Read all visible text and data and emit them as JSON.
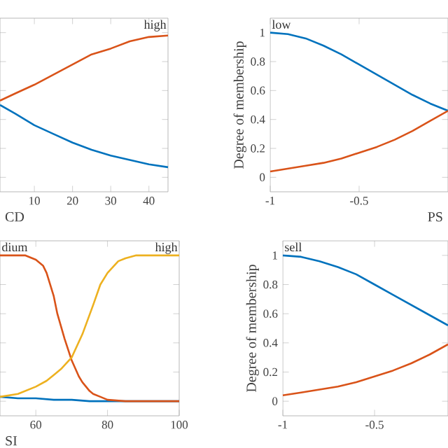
{
  "chart_data": [
    {
      "type": "line",
      "xlabel": "CD",
      "xlim": [
        1,
        45
      ],
      "xticks": [
        10,
        20,
        30,
        40
      ],
      "ylim": [
        -0.1,
        1.1
      ],
      "yticks": [
        0,
        0.2,
        0.4,
        0.6,
        0.8,
        1
      ],
      "tick_labels": "x",
      "annotations": [
        "high"
      ],
      "series": [
        {
          "color": "#0072bd",
          "x": [
            1,
            5,
            10,
            15,
            20,
            25,
            30,
            35,
            40,
            45
          ],
          "values": [
            0.5,
            0.44,
            0.36,
            0.3,
            0.24,
            0.19,
            0.15,
            0.12,
            0.09,
            0.07
          ]
        },
        {
          "color": "#d95319",
          "x": [
            1,
            5,
            10,
            15,
            20,
            25,
            30,
            35,
            40,
            45
          ],
          "values": [
            0.53,
            0.58,
            0.64,
            0.71,
            0.78,
            0.85,
            0.89,
            0.94,
            0.97,
            0.98
          ]
        }
      ]
    },
    {
      "type": "line",
      "xlabel": "PS",
      "ylabel": "Degree of membership",
      "xlim": [
        -1,
        0
      ],
      "xticks": [
        -1,
        -0.5
      ],
      "ylim": [
        -0.1,
        1.1
      ],
      "yticks": [
        0,
        0.2,
        0.4,
        0.6,
        0.8,
        1
      ],
      "annotations": [
        "low"
      ],
      "series": [
        {
          "color": "#0072bd",
          "x": [
            -1,
            -0.9,
            -0.8,
            -0.7,
            -0.6,
            -0.5,
            -0.4,
            -0.3,
            -0.2,
            -0.1,
            0
          ],
          "values": [
            1.0,
            0.99,
            0.96,
            0.91,
            0.85,
            0.78,
            0.71,
            0.64,
            0.57,
            0.51,
            0.46
          ]
        },
        {
          "color": "#d95319",
          "x": [
            -1,
            -0.9,
            -0.8,
            -0.7,
            -0.6,
            -0.5,
            -0.4,
            -0.3,
            -0.2,
            -0.1,
            0
          ],
          "values": [
            0.04,
            0.06,
            0.08,
            0.1,
            0.13,
            0.17,
            0.21,
            0.26,
            0.32,
            0.39,
            0.46
          ]
        }
      ]
    },
    {
      "type": "line",
      "xlabel": "SI",
      "xlim": [
        50,
        100
      ],
      "xticks": [
        60,
        80,
        100
      ],
      "ylim": [
        -0.1,
        1.1
      ],
      "yticks": [
        0,
        0.2,
        0.4,
        0.6,
        0.8,
        1
      ],
      "tick_labels": "x",
      "annotations": [
        "dium",
        "high"
      ],
      "series": [
        {
          "color": "#0072bd",
          "x": [
            50,
            55,
            60,
            65,
            70,
            75,
            80,
            90,
            100
          ],
          "values": [
            0.03,
            0.02,
            0.02,
            0.01,
            0.01,
            0,
            0,
            0,
            0
          ]
        },
        {
          "color": "#d95319",
          "x": [
            50,
            55,
            57,
            60,
            62,
            63,
            65,
            66,
            68,
            70,
            72,
            73,
            75,
            76,
            78,
            80,
            85,
            90,
            100
          ],
          "values": [
            1,
            1,
            1,
            0.97,
            0.93,
            0.88,
            0.72,
            0.6,
            0.43,
            0.28,
            0.17,
            0.13,
            0.07,
            0.05,
            0.03,
            0.01,
            0,
            0,
            0
          ]
        },
        {
          "color": "#edb120",
          "x": [
            50,
            55,
            60,
            63,
            65,
            67,
            70,
            73,
            76,
            78,
            80,
            83,
            85,
            88,
            90,
            95,
            100
          ],
          "values": [
            0.03,
            0.05,
            0.1,
            0.14,
            0.18,
            0.22,
            0.3,
            0.46,
            0.66,
            0.8,
            0.88,
            0.96,
            0.98,
            1,
            1,
            1,
            1
          ]
        }
      ]
    },
    {
      "type": "line",
      "ylabel": "Degree of membership",
      "xlim": [
        -1,
        -0.1
      ],
      "xticks": [
        -1,
        -0.5
      ],
      "ylim": [
        -0.1,
        1.1
      ],
      "yticks": [
        0,
        0.2,
        0.4,
        0.6,
        0.8,
        1
      ],
      "annotations": [
        "sell"
      ],
      "series": [
        {
          "color": "#0072bd",
          "x": [
            -1,
            -0.9,
            -0.8,
            -0.7,
            -0.6,
            -0.5,
            -0.4,
            -0.3,
            -0.2,
            -0.1
          ],
          "values": [
            1.0,
            0.99,
            0.96,
            0.92,
            0.87,
            0.8,
            0.73,
            0.66,
            0.59,
            0.52
          ]
        },
        {
          "color": "#d95319",
          "x": [
            -1,
            -0.9,
            -0.8,
            -0.7,
            -0.6,
            -0.5,
            -0.4,
            -0.3,
            -0.2,
            -0.1
          ],
          "values": [
            0.04,
            0.06,
            0.08,
            0.1,
            0.13,
            0.17,
            0.21,
            0.26,
            0.32,
            0.39
          ]
        }
      ]
    }
  ]
}
